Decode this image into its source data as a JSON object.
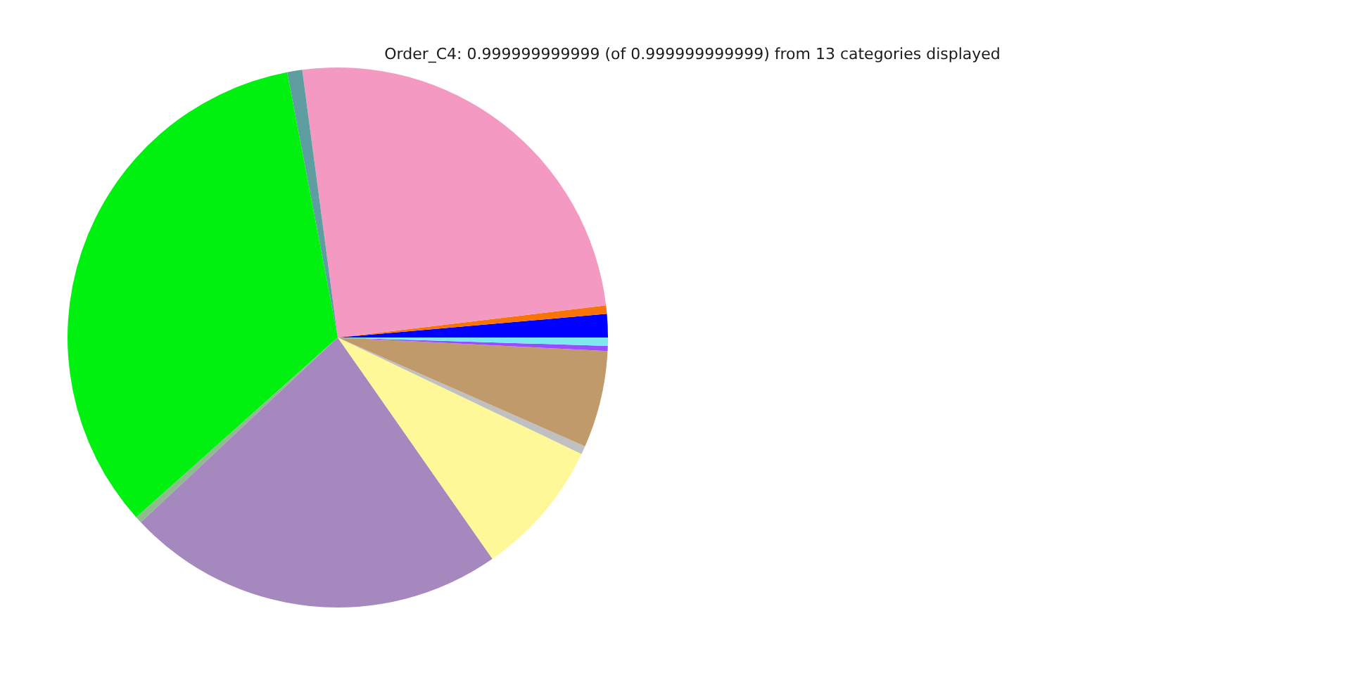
{
  "chart_data": {
    "type": "pie",
    "title": "Order_C4: 0.999999999999 (of 0.999999999999) from 13 categories displayed",
    "categories": [
      null,
      null,
      null,
      null,
      null,
      null,
      null,
      null,
      null,
      null,
      null,
      null
    ],
    "values": [
      1.4,
      0.5,
      25.2,
      0.9,
      33.6,
      0.4,
      22.7,
      8.2,
      0.5,
      5.8,
      0.3,
      0.5
    ],
    "colors": [
      "#0000ff",
      "#f97306",
      "#f49ac2",
      "#5f9ea0",
      "#00f010",
      "#8fbc8f",
      "#a488be",
      "#fff899",
      "#c0c0c0",
      "#c19a6b",
      "#9a4dff",
      "#7ee8f0"
    ]
  }
}
